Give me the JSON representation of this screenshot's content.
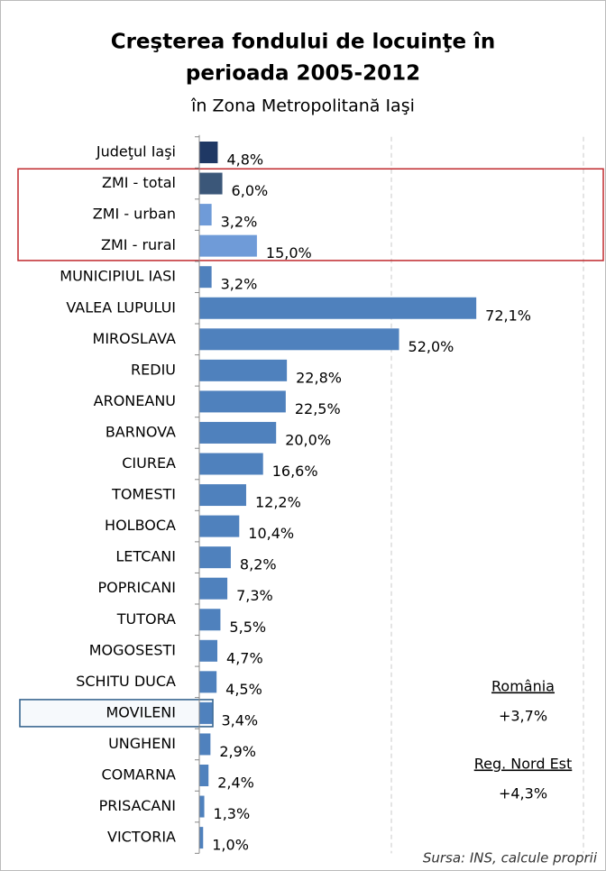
{
  "chart_data": {
    "type": "barh",
    "title": [
      "Creşterea fondului de locuinţe în",
      "perioada 2005-2012"
    ],
    "subtitle": "în Zona Metropolitană Iaşi",
    "categories": [
      "Judeţul Iaşi",
      "ZMI - total",
      "ZMI - urban",
      "ZMI - rural",
      "MUNICIPIUL IASI",
      "VALEA LUPULUI",
      "MIROSLAVA",
      "REDIU",
      "ARONEANU",
      "BARNOVA",
      "CIUREA",
      "TOMESTI",
      "HOLBOCA",
      "LETCANI",
      "POPRICANI",
      "TUTORA",
      "MOGOSESTI",
      "SCHITU DUCA",
      "MOVILENI",
      "UNGHENI",
      "COMARNA",
      "PRISACANI",
      "VICTORIA"
    ],
    "values": [
      4.8,
      6.0,
      3.2,
      15.0,
      3.2,
      72.1,
      52.0,
      22.8,
      22.5,
      20.0,
      16.6,
      12.2,
      10.4,
      8.2,
      7.3,
      5.5,
      4.7,
      4.5,
      3.4,
      2.9,
      2.4,
      1.3,
      1.0
    ],
    "value_labels": [
      "4,8%",
      "6,0%",
      "3,2%",
      "15,0%",
      "3,2%",
      "72,1%",
      "52,0%",
      "22,8%",
      "22,5%",
      "20,0%",
      "16,6%",
      "12,2%",
      "10,4%",
      "8,2%",
      "7,3%",
      "5,5%",
      "4,7%",
      "4,5%",
      "3,4%",
      "2,9%",
      "2,4%",
      "1,3%",
      "1,0%"
    ],
    "colors": [
      "#1f3864",
      "#3b5779",
      "#6f9bd8",
      "#6f9bd8",
      "#4f81bd",
      "#4f81bd",
      "#4f81bd",
      "#4f81bd",
      "#4f81bd",
      "#4f81bd",
      "#4f81bd",
      "#4f81bd",
      "#4f81bd",
      "#4f81bd",
      "#4f81bd",
      "#4f81bd",
      "#4f81bd",
      "#4f81bd",
      "#4f81bd",
      "#4f81bd",
      "#4f81bd",
      "#4f81bd",
      "#4f81bd"
    ],
    "xlim": [
      0,
      100
    ],
    "xticks": [
      50,
      100
    ],
    "grid": true,
    "annotations": [
      {
        "title": "România",
        "value": "+3,7%"
      },
      {
        "title": "Reg. Nord Est",
        "value": "+4,3%"
      }
    ],
    "source": "Sursa: INS, calcule proprii"
  }
}
